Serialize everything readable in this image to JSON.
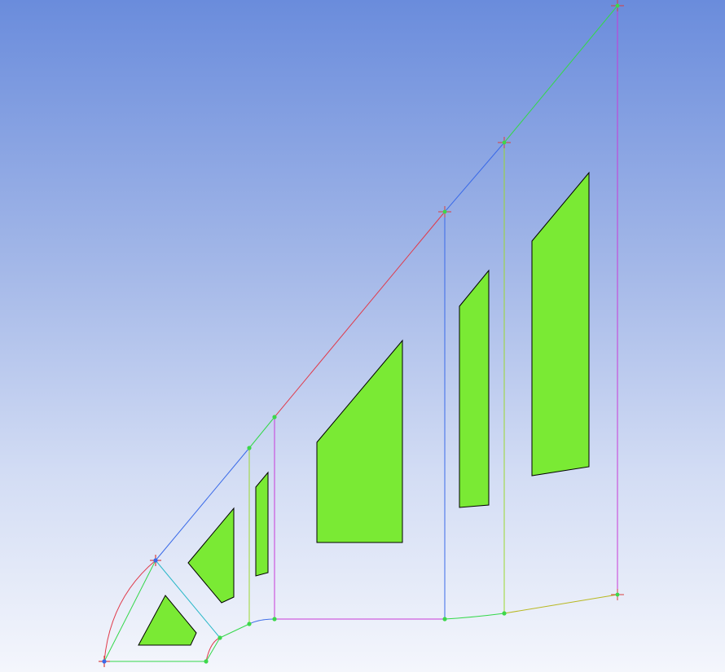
{
  "view": {
    "background_top": "#6a8cdc",
    "background_bottom": "#f4f6fc"
  },
  "colors": {
    "face_fill": "#7aea34",
    "face_stroke": "#000000",
    "vertex_green": "#3cd84a",
    "vertex_cross": "#d84040",
    "edge_red": "#e03a4a",
    "edge_blue": "#3a6ae8",
    "edge_green": "#34d84a",
    "edge_cyan": "#2ab8c8",
    "edge_magenta": "#c83ad8",
    "edge_lime": "#9ad830",
    "edge_olive": "#b8b820"
  },
  "geometry_icons": {
    "vertex": "vertex-marker-icon",
    "crosshair": "crosshair-vertex-icon"
  }
}
